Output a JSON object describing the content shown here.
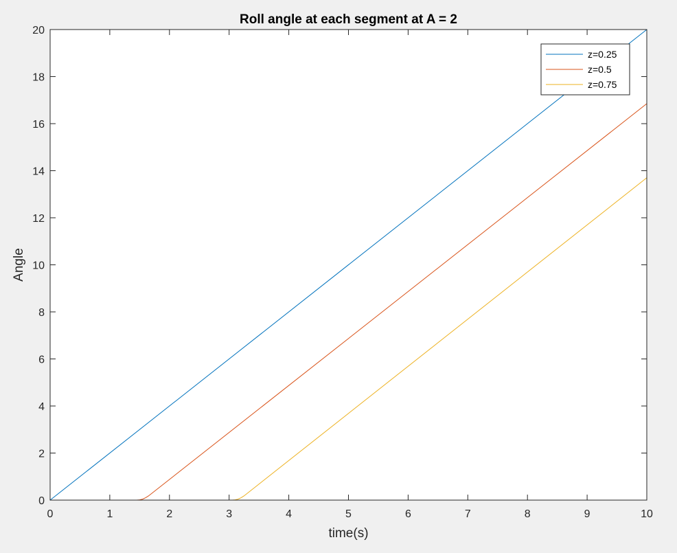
{
  "chart_data": {
    "type": "line",
    "title": "Roll angle at each segment at A = 2",
    "xlabel": "time(s)",
    "ylabel": "Angle",
    "xlim": [
      0,
      10
    ],
    "ylim": [
      0,
      20
    ],
    "xticks": [
      0,
      1,
      2,
      3,
      4,
      5,
      6,
      7,
      8,
      9,
      10
    ],
    "yticks": [
      0,
      2,
      4,
      6,
      8,
      10,
      12,
      14,
      16,
      18,
      20
    ],
    "grid": false,
    "legend_position": "top-right",
    "series": [
      {
        "name": "z=0.25",
        "color": "#0072BD",
        "x": [
          0,
          10
        ],
        "y": [
          0,
          20
        ]
      },
      {
        "name": "z=0.5",
        "color": "#D95319",
        "x": [
          0,
          1.45,
          1.5,
          1.55,
          1.6,
          1.65,
          10
        ],
        "y": [
          0,
          0,
          0.01,
          0.04,
          0.1,
          0.18,
          16.85
        ]
      },
      {
        "name": "z=0.75",
        "color": "#EDB120",
        "x": [
          0,
          3.05,
          3.1,
          3.15,
          3.2,
          3.25,
          10
        ],
        "y": [
          0,
          0,
          0.01,
          0.04,
          0.1,
          0.18,
          13.7
        ]
      }
    ]
  }
}
